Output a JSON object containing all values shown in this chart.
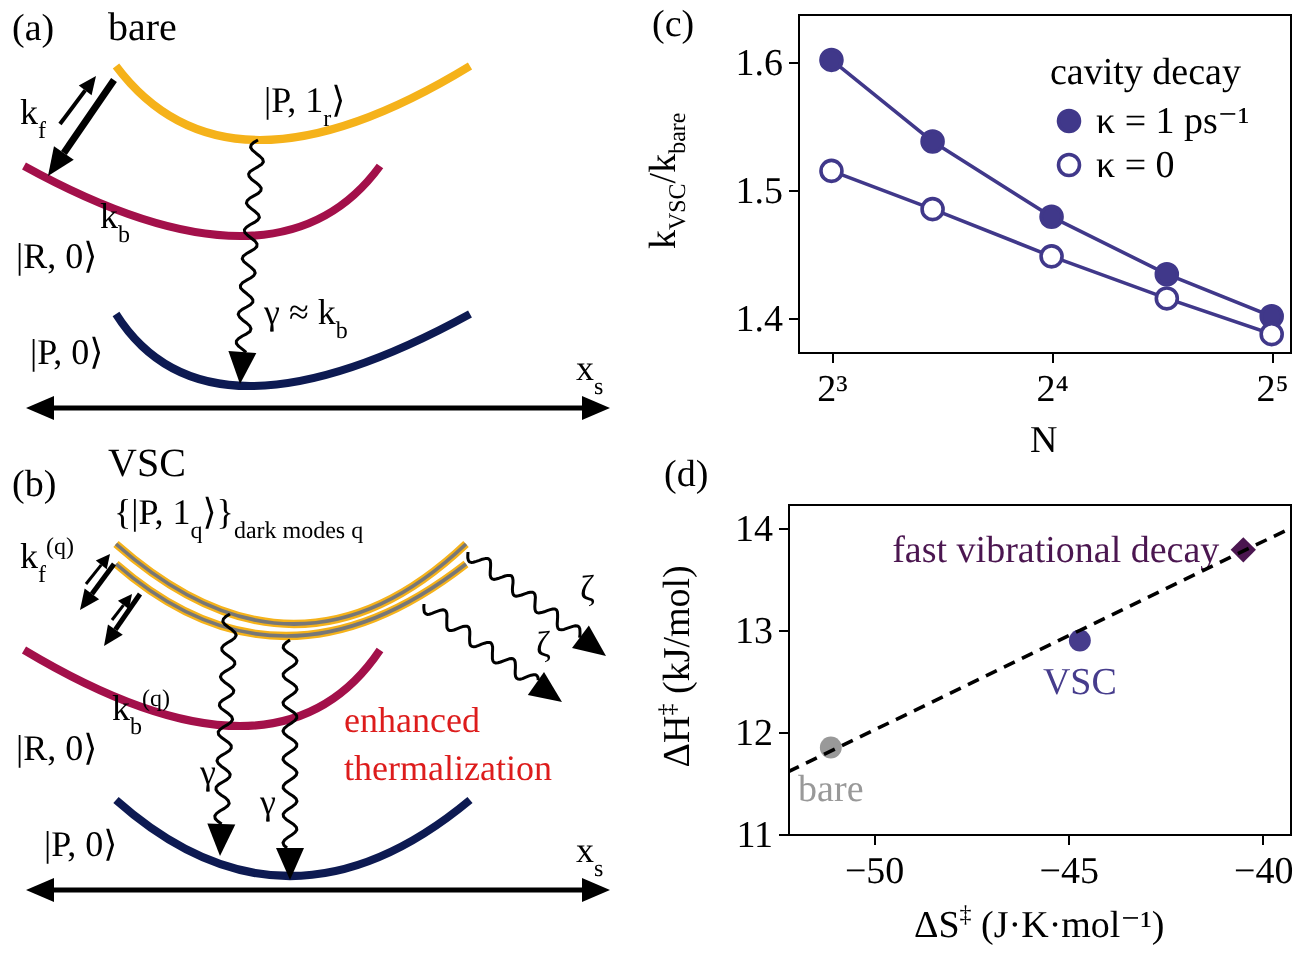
{
  "chart_data": [
    {
      "type": "other",
      "title": "(a)",
      "subtitle": "bare",
      "annotations": [
        "|P, 1$_{r}$⟩",
        "k$_{f}$",
        "k$_{b}$",
        "|R, 0⟩",
        "γ ≈ k$_{b}$",
        "|P, 0⟩",
        "x$_{s}$"
      ]
    },
    {
      "type": "other",
      "title": "(b)",
      "subtitle": "VSC",
      "annotations": [
        "{|P, 1$_{q}$⟩}$_{dark modes q}$",
        "k$_{f}$$^{(q)}$",
        "k$_{b}$$^{(q)}$",
        "|R, 0⟩",
        "γ",
        "γ",
        "ζ",
        "ζ",
        "enhanced thermalization",
        "|P, 0⟩",
        "x$_{s}$"
      ]
    },
    {
      "type": "line",
      "title": "(c)",
      "xlabel": "N",
      "ylabel": "k$_{VSC}$/k$_{bare}$",
      "legend_title": "cavity decay",
      "legend": "top right",
      "log": "x",
      "marker": "circle",
      "x": [
        8,
        11,
        16,
        23,
        32
      ],
      "xlim": [
        7.2,
        33.9
      ],
      "xticks": [
        {
          "value": 8,
          "label": "2³"
        },
        {
          "value": 16,
          "label": "2⁴"
        },
        {
          "value": 32,
          "label": "2⁵"
        }
      ],
      "ylim": [
        1.373,
        1.638
      ],
      "yticks": [
        1.4,
        1.5,
        1.6
      ],
      "series": [
        {
          "name": "κ = 1 ps⁻¹",
          "color": "#40388a",
          "values": [
            1.602,
            1.538,
            1.479,
            1.434,
            1.401
          ]
        },
        {
          "name": "κ = 0",
          "color": "#40388a",
          "marker": "circle-open",
          "values": [
            1.515,
            1.485,
            1.448,
            1.415,
            1.387
          ]
        }
      ]
    },
    {
      "type": "scatter",
      "title": "(d)",
      "xlabel": "ΔS$^{‡}$ (J·K·mol⁻¹)",
      "ylabel": "ΔH$^{‡}$ (kJ/mol)",
      "xlim": [
        -52.2,
        -39.3
      ],
      "xticks": [
        -50,
        -45,
        -40
      ],
      "ylim": [
        11,
        14.24
      ],
      "yticks": [
        11,
        12,
        13,
        14
      ],
      "series": [
        {
          "name": "bare",
          "color": "#999999",
          "marker": "circle",
          "x": [
            -51.1
          ],
          "values": [
            11.85
          ]
        },
        {
          "name": "VSC",
          "color": "#463c8c",
          "marker": "circle",
          "x": [
            -44.7
          ],
          "values": [
            12.9
          ]
        },
        {
          "name": "fast vibrational decay",
          "color": "#4b1650",
          "marker": "diamond",
          "x": [
            -40.5
          ],
          "values": [
            13.79
          ]
        },
        {
          "type": "line",
          "color": "#000000",
          "line_style": "dashed",
          "marker": "none",
          "x": [
            -52.2,
            -39.3
          ],
          "values": [
            11.61,
            14.0
          ]
        }
      ]
    }
  ]
}
